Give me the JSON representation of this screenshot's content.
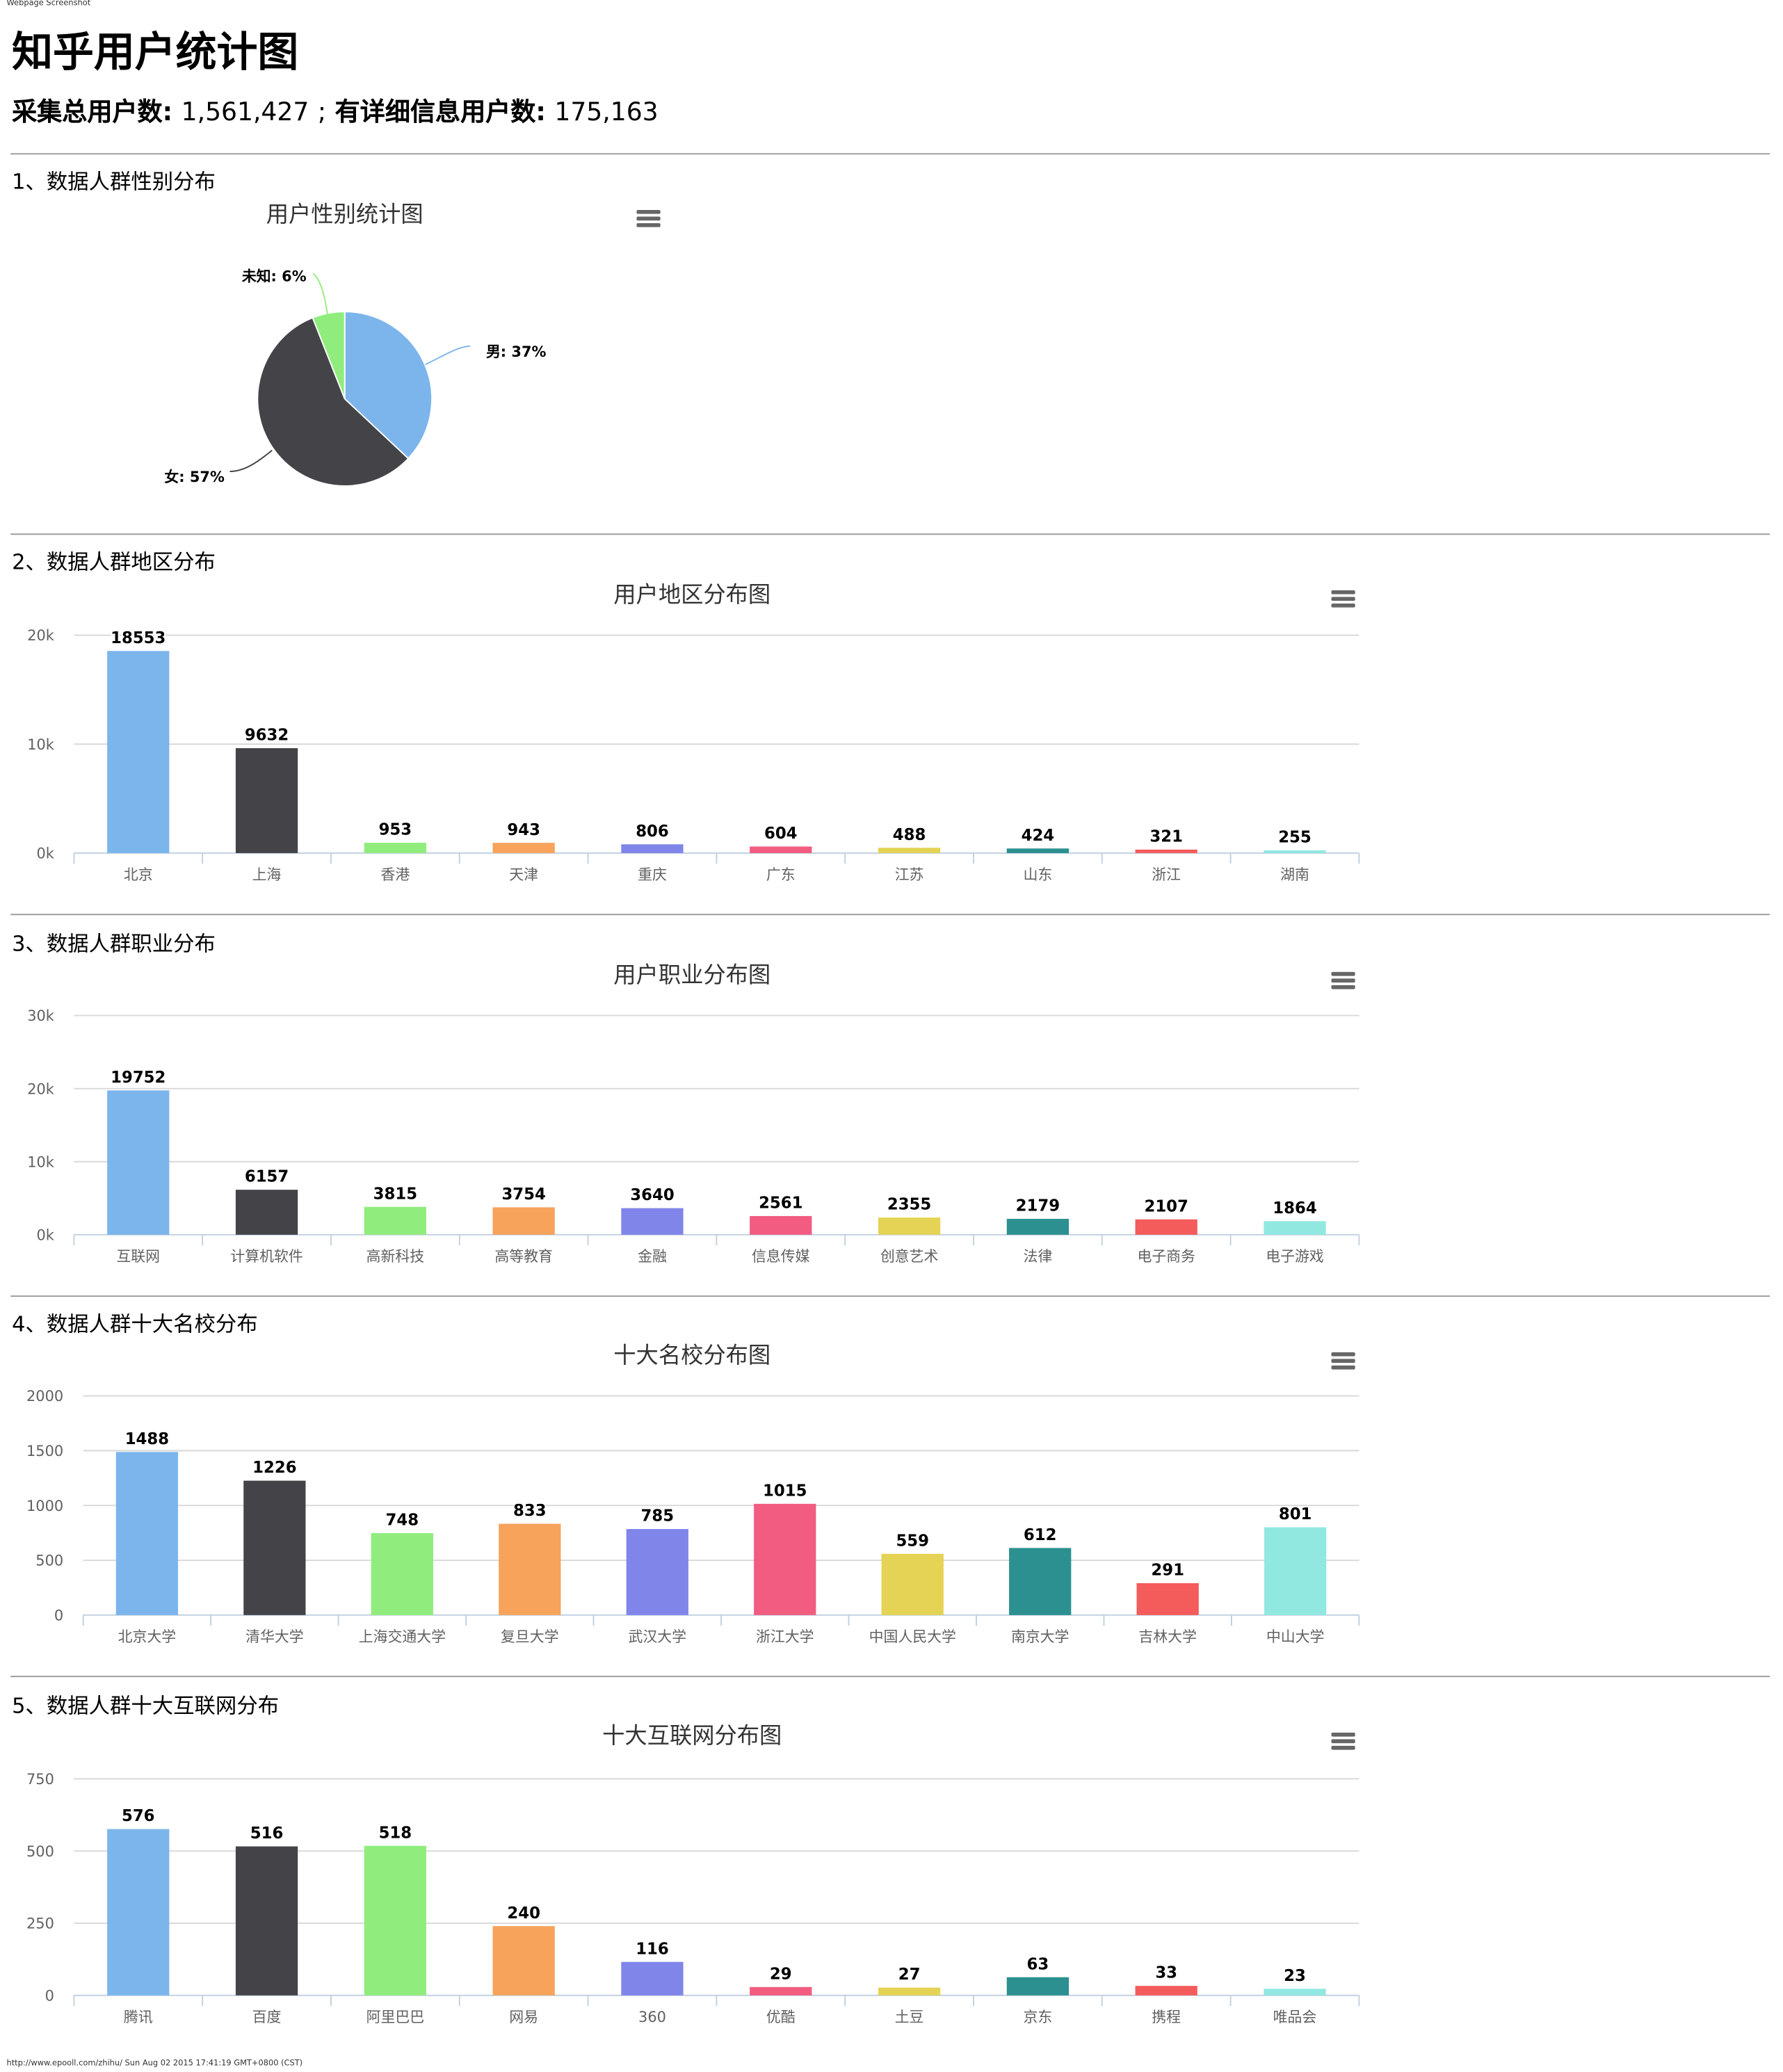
{
  "screenshot_label": "Webpage Screenshot",
  "page_title": "知乎用户统计图",
  "summary": {
    "total_label": "采集总用户数:",
    "total_value": "1,561,427",
    "separator": ";",
    "detailed_label": "有详细信息用户数:",
    "detailed_value": "175,163"
  },
  "sections": [
    {
      "heading": "1、数据人群性别分布"
    },
    {
      "heading": "2、数据人群地区分布"
    },
    {
      "heading": "3、数据人群职业分布"
    },
    {
      "heading": "4、数据人群十大名校分布"
    },
    {
      "heading": "5、数据人群十大互联网分布"
    }
  ],
  "menu_icon": "hamburger-menu-icon",
  "colors": [
    "#7cb5ec",
    "#434348",
    "#90ed7d",
    "#f7a35c",
    "#8085e9",
    "#f15c80",
    "#e4d354",
    "#2b908f",
    "#f45b5b",
    "#91e8e1"
  ],
  "chart_data": [
    {
      "type": "pie",
      "title": "用户性别统计图",
      "slices": [
        {
          "name": "男",
          "value": 37,
          "label": "男: 37%"
        },
        {
          "name": "女",
          "value": 57,
          "label": "女: 57%"
        },
        {
          "name": "未知",
          "value": 6,
          "label": "未知: 6%"
        }
      ]
    },
    {
      "type": "bar",
      "title": "用户地区分布图",
      "categories": [
        "北京",
        "上海",
        "香港",
        "天津",
        "重庆",
        "广东",
        "江苏",
        "山东",
        "浙江",
        "湖南"
      ],
      "values": [
        18553,
        9632,
        953,
        943,
        806,
        604,
        488,
        424,
        321,
        255
      ],
      "ylim": [
        0,
        20000
      ],
      "yticks": [
        "0k",
        "10k",
        "20k"
      ],
      "grid": true
    },
    {
      "type": "bar",
      "title": "用户职业分布图",
      "categories": [
        "互联网",
        "计算机软件",
        "高新科技",
        "高等教育",
        "金融",
        "信息传媒",
        "创意艺术",
        "法律",
        "电子商务",
        "电子游戏"
      ],
      "values": [
        19752,
        6157,
        3815,
        3754,
        3640,
        2561,
        2355,
        2179,
        2107,
        1864
      ],
      "ylim": [
        0,
        30000
      ],
      "yticks": [
        "0k",
        "10k",
        "20k",
        "30k"
      ],
      "grid": true
    },
    {
      "type": "bar",
      "title": "十大名校分布图",
      "categories": [
        "北京大学",
        "清华大学",
        "上海交通大学",
        "复旦大学",
        "武汉大学",
        "浙江大学",
        "中国人民大学",
        "南京大学",
        "吉林大学",
        "中山大学"
      ],
      "values": [
        1488,
        1226,
        748,
        833,
        785,
        1015,
        559,
        612,
        291,
        801
      ],
      "ylim": [
        0,
        2000
      ],
      "yticks": [
        "0",
        "500",
        "1000",
        "1500",
        "2000"
      ],
      "grid": true
    },
    {
      "type": "bar",
      "title": "十大互联网分布图",
      "categories": [
        "腾讯",
        "百度",
        "阿里巴巴",
        "网易",
        "360",
        "优酷",
        "土豆",
        "京东",
        "携程",
        "唯品会"
      ],
      "values": [
        576,
        516,
        518,
        240,
        116,
        29,
        27,
        63,
        33,
        23
      ],
      "ylim": [
        0,
        750
      ],
      "yticks": [
        "0",
        "250",
        "500",
        "750"
      ],
      "grid": true
    }
  ],
  "footer": "http://www.epooll.com/zhihu/ Sun Aug 02 2015 17:41:19 GMT+0800 (CST)"
}
